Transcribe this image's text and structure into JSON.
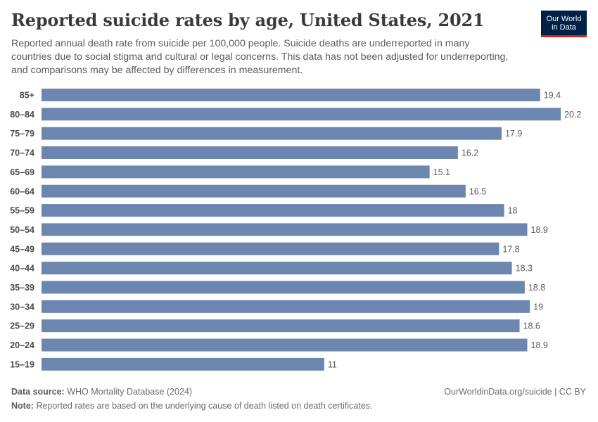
{
  "header": {
    "title": "Reported suicide rates by age, United States, 2021",
    "subtitle": "Reported annual death rate from suicide per 100,000 people. Suicide deaths are underreported in many countries due to social stigma and cultural or legal concerns. This data has not been adjusted for underreporting, and comparisons may be affected by differences in measurement.",
    "logo_line1": "Our World",
    "logo_line2": "in Data"
  },
  "footer": {
    "source_label": "Data source:",
    "source_value": "WHO Mortality Database (2024)",
    "license": "OurWorldinData.org/suicide | CC BY",
    "note_label": "Note:",
    "note_value": "Reported rates are based on the underlying cause of death listed on death certificates."
  },
  "colors": {
    "bar": "#6d86b0",
    "logo_bg": "#002147",
    "logo_accent": "#ce261e"
  },
  "chart_data": {
    "type": "bar",
    "orientation": "horizontal",
    "title": "Reported suicide rates by age, United States, 2021",
    "xlabel": "",
    "ylabel": "",
    "categories": [
      "85+",
      "80–84",
      "75–79",
      "70–74",
      "65–69",
      "60–64",
      "55–59",
      "50–54",
      "45–49",
      "40–44",
      "35–39",
      "30–34",
      "25–29",
      "20–24",
      "15–19"
    ],
    "values": [
      19.4,
      20.2,
      17.9,
      16.2,
      15.1,
      16.5,
      18,
      18.9,
      17.8,
      18.3,
      18.8,
      19,
      18.6,
      18.9,
      11
    ],
    "value_labels": [
      "19.4",
      "20.2",
      "17.9",
      "16.2",
      "15.1",
      "16.5",
      "18",
      "18.9",
      "17.8",
      "18.3",
      "18.8",
      "19",
      "18.6",
      "18.9",
      "11"
    ],
    "xlim": [
      0,
      20.2
    ],
    "grid": false,
    "legend": "none"
  }
}
